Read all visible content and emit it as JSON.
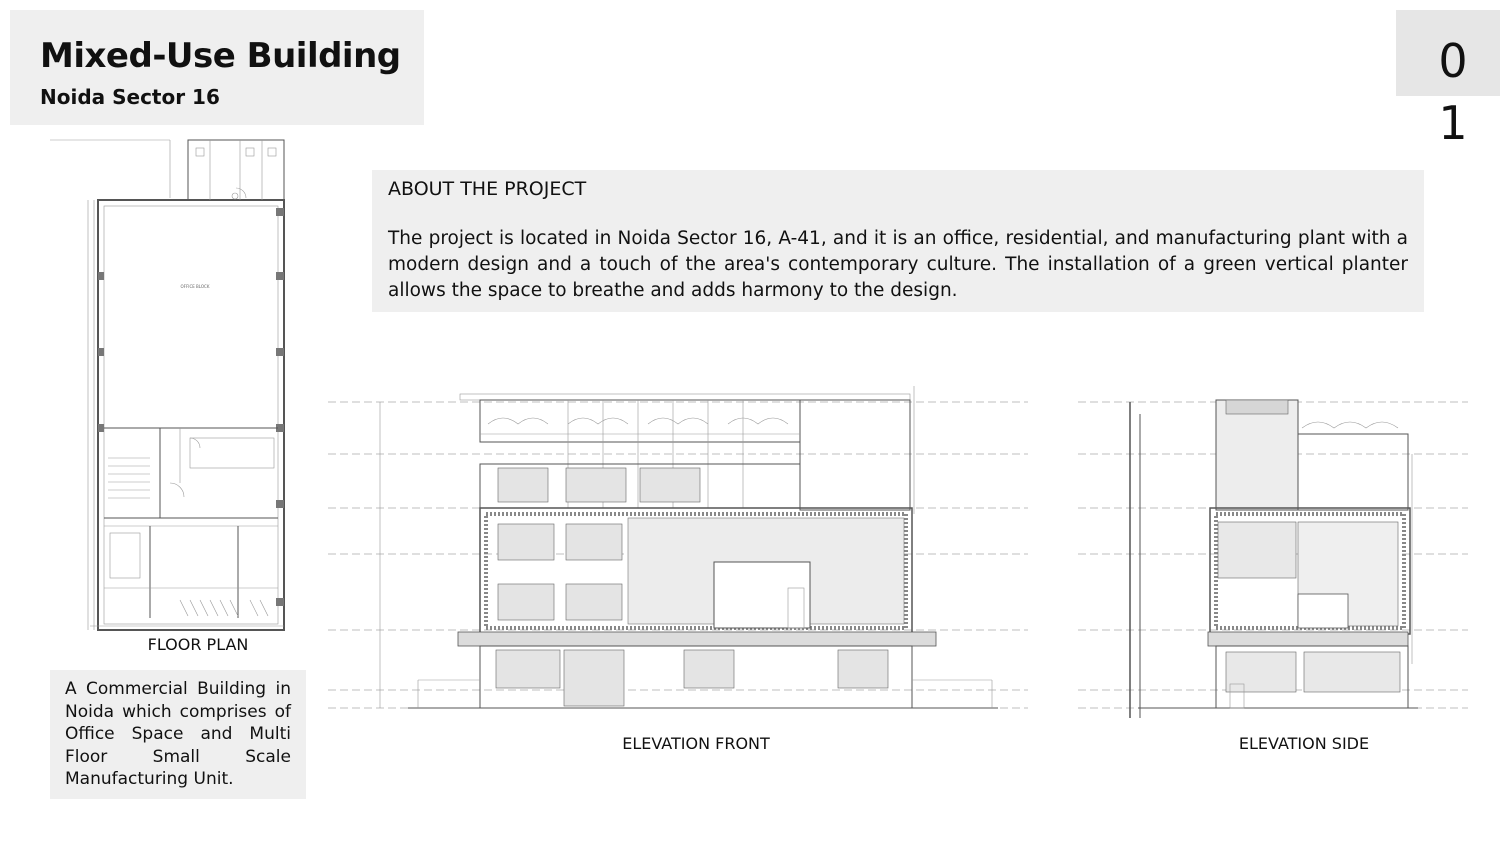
{
  "header": {
    "title": "Mixed-Use Building",
    "subtitle": "Noida Sector 16"
  },
  "page_number": "0\n1",
  "about": {
    "heading": "ABOUT THE PROJECT",
    "body": "The project is located in Noida Sector 16, A-41, and it is an office, residential, and manufacturing plant with a modern design and a touch of the area's contemporary culture. The installation of a green vertical planter allows the space to breathe and adds harmony to the design."
  },
  "drawings": {
    "floor_plan_caption": "FLOOR PLAN",
    "elevation_front_caption": "ELEVATION FRONT",
    "elevation_side_caption": "ELEVATION SIDE"
  },
  "description": "A Commercial Building in Noida which comprises of Office Space and Multi Floor Small Scale Manufacturing Unit."
}
